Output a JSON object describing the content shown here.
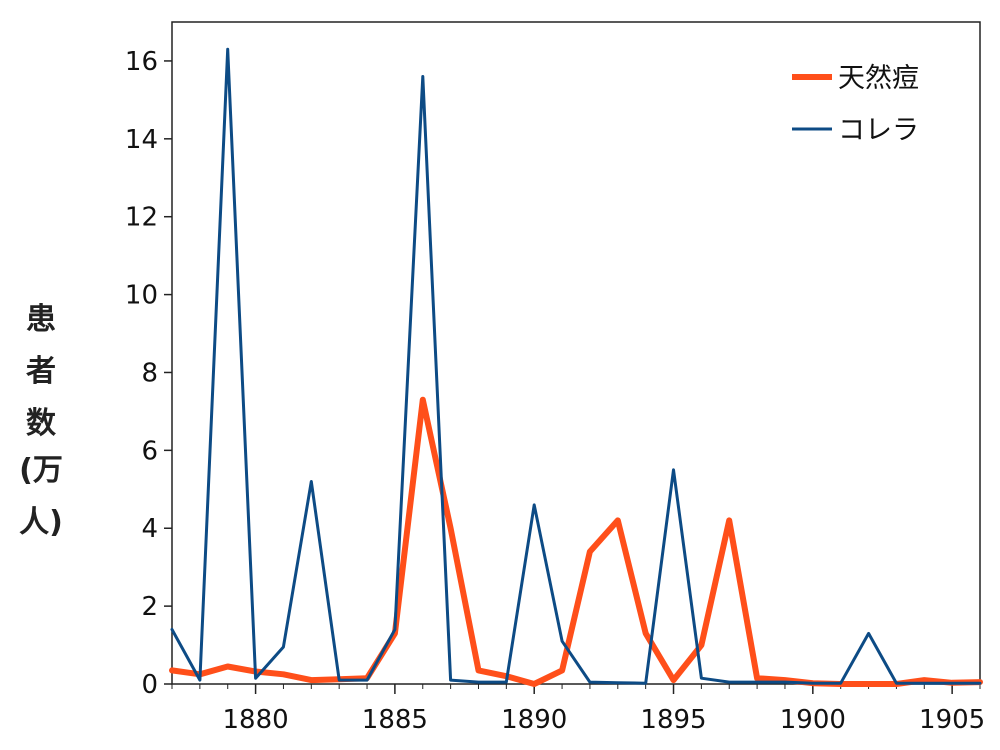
{
  "chart_data": {
    "type": "line",
    "title": "",
    "xlabel": "",
    "ylabel": [
      "患",
      "者",
      "数",
      "(万人)"
    ],
    "xlim": [
      1877,
      1906
    ],
    "ylim": [
      0,
      17
    ],
    "xticks": [
      1880,
      1885,
      1890,
      1895,
      1900,
      1905
    ],
    "yticks": [
      0,
      2,
      4,
      6,
      8,
      10,
      12,
      14,
      16
    ],
    "grid": false,
    "legend_position": "top-right",
    "x": [
      1877,
      1878,
      1879,
      1880,
      1881,
      1882,
      1883,
      1884,
      1885,
      1886,
      1887,
      1888,
      1889,
      1890,
      1891,
      1892,
      1893,
      1894,
      1895,
      1896,
      1897,
      1898,
      1899,
      1900,
      1901,
      1902,
      1903,
      1904,
      1905,
      1906
    ],
    "series": [
      {
        "name": "天然痘",
        "color": "#ff4f1a",
        "values": [
          0.35,
          0.25,
          0.45,
          0.32,
          0.25,
          0.1,
          0.12,
          0.15,
          1.3,
          7.3,
          4.0,
          0.35,
          0.2,
          0.0,
          0.35,
          3.4,
          4.2,
          1.3,
          0.1,
          1.0,
          4.2,
          0.15,
          0.1,
          0.02,
          0.0,
          0.0,
          0.0,
          0.1,
          0.03,
          0.05
        ]
      },
      {
        "name": "コレラ",
        "color": "#0d4b85",
        "values": [
          1.4,
          0.1,
          16.3,
          0.15,
          0.95,
          5.2,
          0.1,
          0.1,
          1.4,
          15.6,
          0.1,
          0.05,
          0.05,
          4.6,
          1.1,
          0.05,
          0.03,
          0.02,
          5.5,
          0.15,
          0.05,
          0.05,
          0.05,
          0.02,
          0.02,
          1.3,
          0.02,
          0.02,
          0.02,
          0.02
        ]
      }
    ]
  }
}
